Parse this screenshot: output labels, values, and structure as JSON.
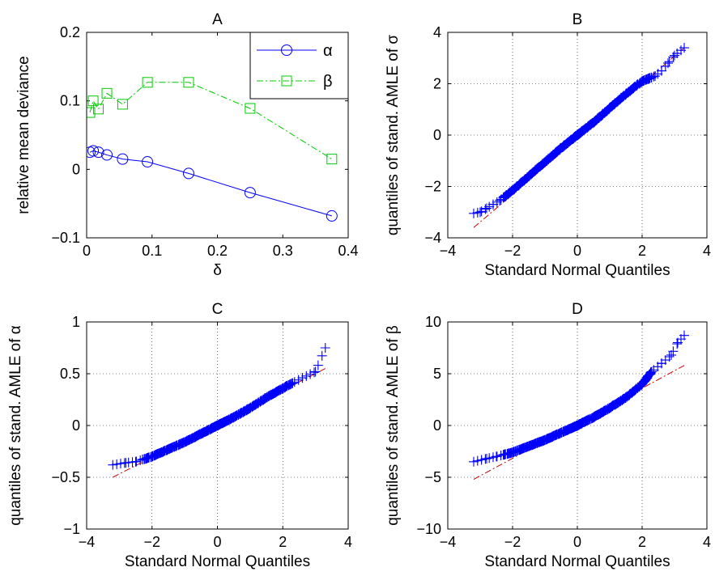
{
  "chart_data": [
    {
      "id": "A",
      "type": "line",
      "title": "A",
      "xlabel": "δ",
      "ylabel": "relative mean deviance",
      "xlim": [
        0,
        0.4
      ],
      "ylim": [
        -0.1,
        0.2
      ],
      "xticks": [
        0,
        0.1,
        0.2,
        0.3,
        0.4
      ],
      "xtick_labels": [
        "0",
        "0.1",
        "0.2",
        "0.3",
        "0.4"
      ],
      "yticks": [
        -0.1,
        0,
        0.1,
        0.2
      ],
      "ytick_labels": [
        "−0.1",
        "0",
        "0.1",
        "0.2"
      ],
      "grid": false,
      "legend_position": "top-right",
      "series": [
        {
          "name": "α",
          "color": "#0000ff",
          "marker": "circle",
          "line_style": "solid",
          "x": [
            0.005,
            0.01,
            0.018,
            0.031,
            0.055,
            0.093,
            0.156,
            0.25,
            0.375
          ],
          "y": [
            0.025,
            0.027,
            0.025,
            0.021,
            0.015,
            0.011,
            -0.006,
            -0.034,
            -0.068
          ]
        },
        {
          "name": "β",
          "color": "#00cc00",
          "marker": "square",
          "line_style": "dashdot",
          "x": [
            0.005,
            0.01,
            0.018,
            0.031,
            0.055,
            0.093,
            0.156,
            0.25,
            0.375
          ],
          "y": [
            0.083,
            0.1,
            0.088,
            0.111,
            0.095,
            0.127,
            0.127,
            0.089,
            0.015
          ]
        }
      ]
    },
    {
      "id": "B",
      "type": "scatter",
      "title": "B",
      "xlabel": "Standard Normal Quantiles",
      "ylabel": "quantiles of stand. AMLE of σ",
      "xlim": [
        -4,
        4
      ],
      "ylim": [
        -4,
        4
      ],
      "xticks": [
        -4,
        -2,
        0,
        2,
        4
      ],
      "xtick_labels": [
        "−4",
        "−2",
        "0",
        "2",
        "4"
      ],
      "yticks": [
        -4,
        -2,
        0,
        2,
        4
      ],
      "ytick_labels": [
        "−4",
        "−2",
        "0",
        "2",
        "4"
      ],
      "grid": true,
      "marker_color": "#0000ff",
      "reference_line_color": "#cc0000",
      "reference_line": {
        "x": [
          -3.2,
          3.3
        ],
        "y": [
          -3.6,
          3.4
        ]
      },
      "curve_points": {
        "x": [
          -3.2,
          -3.0,
          -2.8,
          -2.6,
          -2.4,
          -2.2,
          -2.0,
          -1.5,
          -1.0,
          -0.5,
          0,
          0.5,
          1.0,
          1.5,
          2.0,
          2.2,
          2.4,
          2.6,
          2.8,
          3.0,
          3.3
        ],
        "y": [
          -3.05,
          -3.0,
          -2.85,
          -2.7,
          -2.55,
          -2.35,
          -2.15,
          -1.6,
          -1.05,
          -0.5,
          0.0,
          0.5,
          1.05,
          1.6,
          2.1,
          2.2,
          2.3,
          2.5,
          2.8,
          3.1,
          3.4
        ]
      }
    },
    {
      "id": "C",
      "type": "scatter",
      "title": "C",
      "xlabel": "Standard Normal Quantiles",
      "ylabel": "quantiles of stand. AMLE of α",
      "xlim": [
        -4,
        4
      ],
      "ylim": [
        -1,
        1
      ],
      "xticks": [
        -4,
        -2,
        0,
        2,
        4
      ],
      "xtick_labels": [
        "−4",
        "−2",
        "0",
        "2",
        "4"
      ],
      "yticks": [
        -1,
        -0.5,
        0,
        0.5,
        1
      ],
      "ytick_labels": [
        "−1",
        "−0.5",
        "0",
        "0.5",
        "1"
      ],
      "grid": true,
      "marker_color": "#0000ff",
      "reference_line_color": "#cc0000",
      "reference_line": {
        "x": [
          -3.2,
          3.3
        ],
        "y": [
          -0.5,
          0.55
        ]
      },
      "curve_points": {
        "x": [
          -3.2,
          -2.8,
          -2.5,
          -2.0,
          -1.5,
          -1.0,
          -0.5,
          0,
          0.5,
          1.0,
          1.5,
          2.0,
          2.3,
          2.6,
          3.0,
          3.3
        ],
        "y": [
          -0.38,
          -0.36,
          -0.35,
          -0.3,
          -0.23,
          -0.16,
          -0.08,
          0.0,
          0.08,
          0.17,
          0.27,
          0.36,
          0.41,
          0.46,
          0.52,
          0.75
        ]
      }
    },
    {
      "id": "D",
      "type": "scatter",
      "title": "D",
      "xlabel": "Standard Normal Quantiles",
      "ylabel": "quantiles of stand. AMLE of β",
      "xlim": [
        -4,
        4
      ],
      "ylim": [
        -10,
        10
      ],
      "xticks": [
        -4,
        -2,
        0,
        2,
        4
      ],
      "xtick_labels": [
        "−4",
        "−2",
        "0",
        "2",
        "4"
      ],
      "yticks": [
        -10,
        -5,
        0,
        5,
        10
      ],
      "ytick_labels": [
        "−10",
        "−5",
        "0",
        "5",
        "10"
      ],
      "grid": true,
      "marker_color": "#0000ff",
      "reference_line_color": "#cc0000",
      "reference_line": {
        "x": [
          -3.2,
          3.3
        ],
        "y": [
          -5.2,
          5.8
        ]
      },
      "curve_points": {
        "x": [
          -3.2,
          -2.8,
          -2.5,
          -2.0,
          -1.5,
          -1.0,
          -0.5,
          0,
          0.5,
          1.0,
          1.5,
          2.0,
          2.3,
          2.6,
          2.9,
          3.1,
          3.3
        ],
        "y": [
          -3.5,
          -3.2,
          -3.0,
          -2.6,
          -2.0,
          -1.4,
          -0.7,
          0.0,
          0.8,
          1.7,
          2.7,
          4.0,
          5.2,
          6.0,
          6.8,
          8.0,
          8.7
        ]
      }
    }
  ]
}
